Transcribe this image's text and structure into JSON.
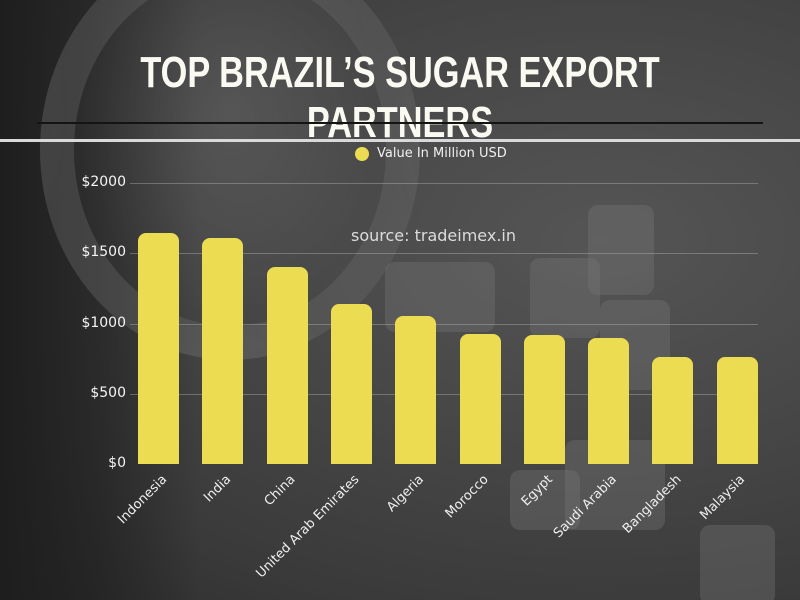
{
  "title": "TOP BRAZIL’S SUGAR EXPORT PARTNERS",
  "source_note": "source: tradeimex.in",
  "colors": {
    "bar": "#ecdc52",
    "title": "#fbfaf2"
  },
  "chart_data": {
    "type": "bar",
    "title": "TOP BRAZIL’S SUGAR EXPORT PARTNERS",
    "xlabel": "",
    "ylabel": "",
    "legend": {
      "entries": [
        "Value In Million USD"
      ],
      "position": "top"
    },
    "categories": [
      "Indonesia",
      "India",
      "China",
      "United Arab Emirates",
      "Algeria",
      "Morocco",
      "Egypt",
      "Saudi Arabia",
      "Bangladesh",
      "Malaysia"
    ],
    "series": [
      {
        "name": "Value In Million USD",
        "values": [
          1645,
          1610,
          1400,
          1140,
          1050,
          925,
          920,
          895,
          765,
          760
        ]
      }
    ],
    "ylim": [
      0,
      2000
    ],
    "yticks": [
      0,
      500,
      1000,
      1500,
      2000
    ],
    "ytick_labels": [
      "$0",
      "$500",
      "$1000",
      "$1500",
      "$2000"
    ],
    "grid": true,
    "annotations": [
      "source: tradeimex.in"
    ]
  }
}
